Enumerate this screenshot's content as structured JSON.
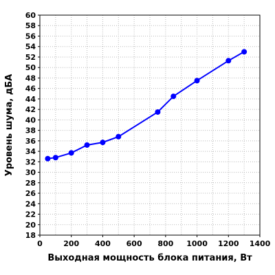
{
  "chart_data": {
    "type": "line",
    "title": "",
    "xlabel": "Выходная мощность блока питания, Вт",
    "ylabel": "Уровень шума, дБА",
    "xlim": [
      0,
      1400
    ],
    "ylim": [
      18,
      60
    ],
    "x_ticks": [
      0,
      200,
      400,
      600,
      800,
      1000,
      1200,
      1400
    ],
    "y_ticks": [
      18,
      20,
      22,
      24,
      26,
      28,
      30,
      32,
      34,
      36,
      38,
      40,
      42,
      44,
      46,
      48,
      50,
      52,
      54,
      56,
      58,
      60
    ],
    "x_minor_grid_step": 100,
    "grid": true,
    "series": [
      {
        "color": "#0000ff",
        "x": [
          50,
          100,
          200,
          300,
          400,
          500,
          750,
          850,
          1000,
          1200,
          1300
        ],
        "y": [
          32.6,
          32.8,
          33.7,
          35.2,
          35.7,
          36.8,
          41.5,
          44.5,
          47.5,
          51.3,
          53.0
        ]
      }
    ]
  }
}
